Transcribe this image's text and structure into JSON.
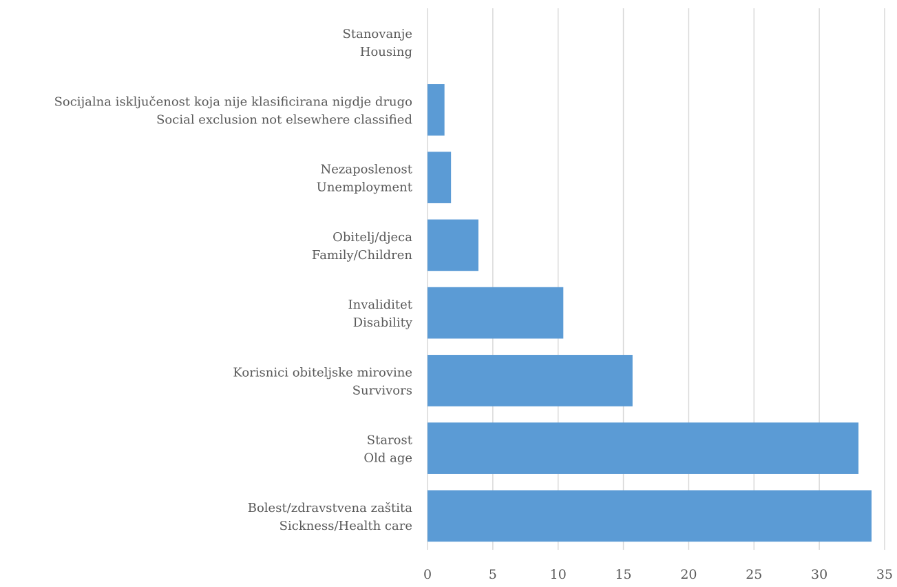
{
  "chart_data": {
    "type": "bar",
    "orientation": "horizontal",
    "title": "",
    "xlabel": "",
    "ylabel": "",
    "xlim": [
      0,
      35
    ],
    "xticks": [
      0,
      5,
      10,
      15,
      20,
      25,
      30,
      35
    ],
    "grid": "vertical",
    "legend": "none",
    "bar_color": "#5b9bd5",
    "categories": [
      {
        "line1": "Stanovanje",
        "line2": "Housing",
        "value": 0
      },
      {
        "line1": "Socijalna isključenost koja nije klasificirana nigdje drugo",
        "line2": "Social exclusion not elsewhere classified",
        "value": 1.3
      },
      {
        "line1": "Nezaposlenost",
        "line2": "Unemployment",
        "value": 1.8
      },
      {
        "line1": "Obitelj/djeca",
        "line2": "Family/Children",
        "value": 3.9
      },
      {
        "line1": "Invaliditet",
        "line2": "Disability",
        "value": 10.4
      },
      {
        "line1": "Korisnici obiteljske mirovine",
        "line2": "Survivors",
        "value": 15.7
      },
      {
        "line1": "Starost",
        "line2": "Old age",
        "value": 33.0
      },
      {
        "line1": "Bolest/zdravstvena zaštita",
        "line2": "Sickness/Health care",
        "value": 34.0
      }
    ]
  }
}
